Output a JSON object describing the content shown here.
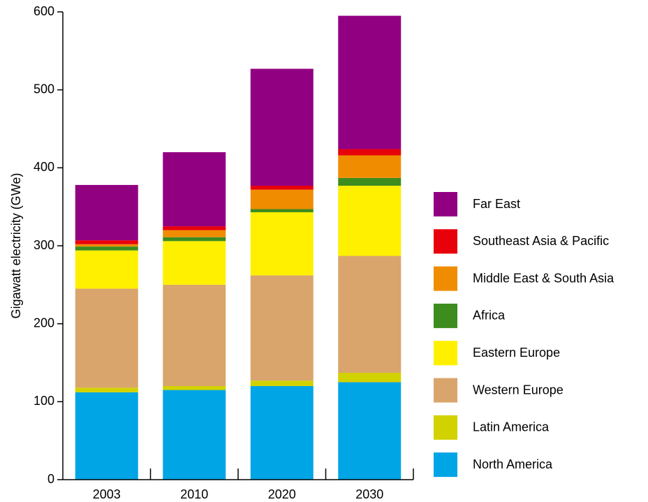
{
  "chart_data": {
    "type": "stacked_bar",
    "ylabel": "Gigawatt electricity (GWe)",
    "categories": [
      "2003",
      "2010",
      "2020",
      "2030"
    ],
    "series": [
      {
        "name": "North America",
        "color": "#00a5e6",
        "values": [
          112,
          115,
          120,
          125
        ]
      },
      {
        "name": "Latin America",
        "color": "#d2d200",
        "values": [
          6,
          5,
          7,
          12
        ]
      },
      {
        "name": "Western Europe",
        "color": "#d9a56c",
        "values": [
          127,
          130,
          135,
          150
        ]
      },
      {
        "name": "Eastern Europe",
        "color": "#fff000",
        "values": [
          49,
          56,
          81,
          90
        ]
      },
      {
        "name": "Africa",
        "color": "#3c8c1e",
        "values": [
          5,
          5,
          4,
          10
        ]
      },
      {
        "name": "Middle East & South Asia",
        "color": "#f08c00",
        "values": [
          3,
          9,
          25,
          29
        ]
      },
      {
        "name": "Southeast Asia & Pacific",
        "color": "#e8000b",
        "values": [
          5,
          5,
          5,
          8
        ]
      },
      {
        "name": "Far East",
        "color": "#920082",
        "values": [
          71,
          95,
          150,
          171
        ]
      }
    ],
    "ylim": [
      0,
      600
    ],
    "yticks": [
      0,
      100,
      200,
      300,
      400,
      500,
      600
    ]
  }
}
